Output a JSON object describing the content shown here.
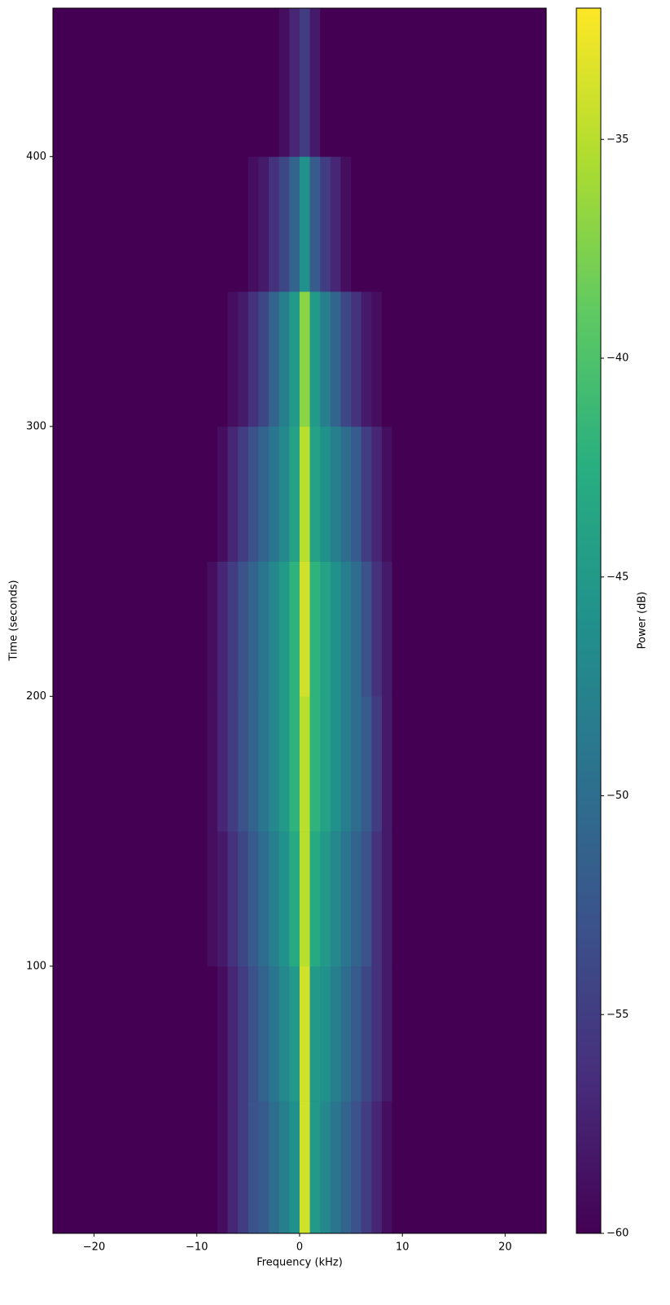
{
  "chart_data": {
    "type": "spectrogram",
    "xlabel": "Frequency (kHz)",
    "ylabel": "Time (seconds)",
    "colorbar_label": "Power (dB)",
    "xlim": [
      -24,
      24
    ],
    "ylim": [
      1,
      455
    ],
    "clim": [
      -60,
      -32
    ],
    "colormap": "viridis",
    "xticks": [
      {
        "value": -20,
        "label": "−20"
      },
      {
        "value": -10,
        "label": "−10"
      },
      0,
      10,
      20
    ],
    "yticks": [
      100,
      200,
      300,
      400
    ],
    "cticks": [
      {
        "value": -60,
        "label": "−60"
      },
      {
        "value": -55,
        "label": "−55"
      },
      {
        "value": -50,
        "label": "−50"
      },
      {
        "value": -45,
        "label": "−45"
      },
      {
        "value": -40,
        "label": "−40"
      },
      {
        "value": -35,
        "label": "−35"
      }
    ],
    "freq_edges": [
      -10,
      -9,
      -8,
      -7,
      -6,
      -5,
      -4,
      -3,
      -2,
      -1,
      0,
      1,
      2,
      3,
      4,
      5,
      6,
      7,
      8,
      9,
      10
    ],
    "time_edges": [
      1,
      50,
      100,
      150,
      200,
      250,
      300,
      350,
      400,
      455
    ],
    "values": [
      [
        -60,
        -60,
        -59,
        -57,
        -55,
        -53,
        -52,
        -50,
        -48,
        -46,
        -34,
        -45,
        -47,
        -49,
        -51,
        -53,
        -55,
        -57,
        -59,
        -60
      ],
      [
        -60,
        -60,
        -59,
        -57,
        -55,
        -53,
        -51,
        -49,
        -47,
        -45,
        -34,
        -45,
        -46,
        -48,
        -50,
        -52,
        -54,
        -56,
        -58,
        -60
      ],
      [
        -60,
        -59,
        -58,
        -56,
        -54,
        -52,
        -50,
        -48,
        -46,
        -43,
        -35,
        -43,
        -45,
        -47,
        -49,
        -51,
        -53,
        -56,
        -58,
        -60
      ],
      [
        -60,
        -59,
        -57,
        -55,
        -53,
        -51,
        -49,
        -47,
        -45,
        -42,
        -35,
        -42,
        -44,
        -46,
        -48,
        -50,
        -52,
        -55,
        -58,
        -60
      ],
      [
        -60,
        -59,
        -57,
        -55,
        -53,
        -51,
        -49,
        -47,
        -45,
        -42,
        -34,
        -42,
        -44,
        -46,
        -48,
        -50,
        -53,
        -56,
        -58,
        -60
      ],
      [
        -60,
        -60,
        -59,
        -57,
        -55,
        -53,
        -51,
        -49,
        -47,
        -44,
        -35,
        -44,
        -46,
        -48,
        -50,
        -52,
        -55,
        -57,
        -59,
        -60
      ],
      [
        -60,
        -60,
        -60,
        -59,
        -58,
        -56,
        -54,
        -51,
        -48,
        -45,
        -37,
        -45,
        -48,
        -51,
        -54,
        -56,
        -58,
        -59,
        -60,
        -60
      ],
      [
        -60,
        -60,
        -60,
        -60,
        -60,
        -59,
        -58,
        -56,
        -54,
        -51,
        -46,
        -52,
        -55,
        -57,
        -59,
        -60,
        -60,
        -60,
        -60,
        -60
      ],
      [
        -60,
        -60,
        -60,
        -60,
        -60,
        -60,
        -60,
        -60,
        -59,
        -57,
        -55,
        -58,
        -60,
        -60,
        -60,
        -60,
        -60,
        -60,
        -60,
        -60
      ]
    ]
  }
}
